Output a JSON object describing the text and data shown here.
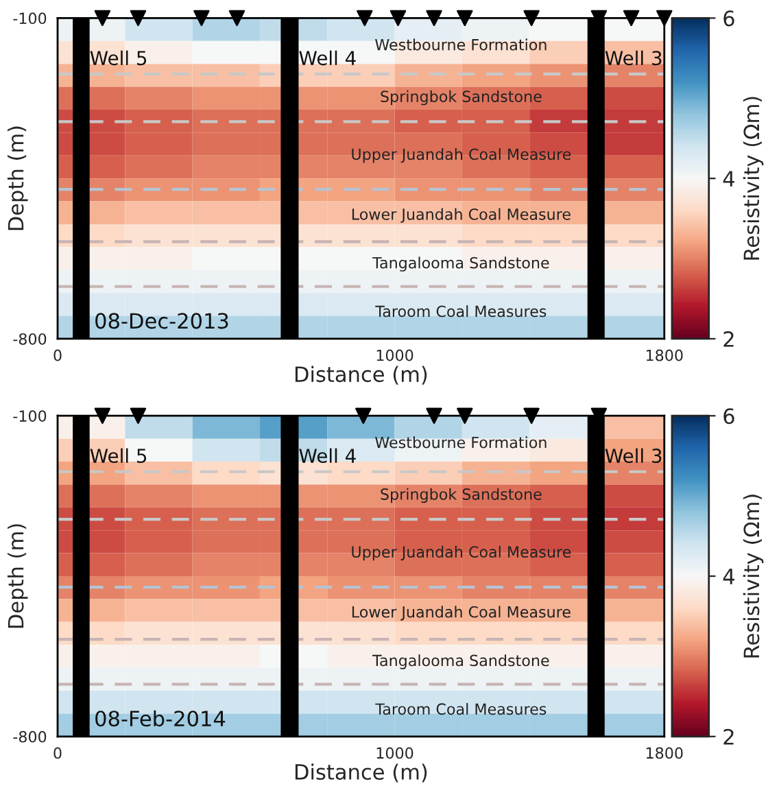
{
  "chart_data": [
    {
      "type": "heatmap",
      "xlabel": "Distance (m)",
      "ylabel": "Depth (m)",
      "clabel": "Resistivity (Ωm)",
      "xlim": [
        0,
        1800
      ],
      "ylim": [
        -800,
        -100
      ],
      "xticks": [
        0,
        1000,
        1800
      ],
      "yticks": [
        -100,
        -800
      ],
      "clim": [
        2,
        6
      ],
      "cticks": [
        2,
        4,
        6
      ],
      "grid": false,
      "cells": [
        [
          4.1,
          4.4,
          4.6,
          4.5,
          4.4,
          4.2,
          4.1,
          4.0,
          4.0
        ],
        [
          3.7,
          3.9,
          4.0,
          4.0,
          4.0,
          3.8,
          3.7,
          3.5,
          3.4
        ],
        [
          3.3,
          3.4,
          3.4,
          3.5,
          3.5,
          3.3,
          3.2,
          3.1,
          3.0
        ],
        [
          2.9,
          3.0,
          3.1,
          3.1,
          3.1,
          3.0,
          2.9,
          2.8,
          2.7
        ],
        [
          2.7,
          2.8,
          2.9,
          2.9,
          2.9,
          2.8,
          2.8,
          2.6,
          2.6
        ],
        [
          2.7,
          2.8,
          2.9,
          2.9,
          2.9,
          2.9,
          2.8,
          2.7,
          2.6
        ],
        [
          2.8,
          2.9,
          3.0,
          3.0,
          3.0,
          3.0,
          2.9,
          2.8,
          2.8
        ],
        [
          3.0,
          3.1,
          3.1,
          3.2,
          3.2,
          3.1,
          3.1,
          3.0,
          3.0
        ],
        [
          3.3,
          3.4,
          3.4,
          3.4,
          3.4,
          3.4,
          3.3,
          3.3,
          3.3
        ],
        [
          3.6,
          3.7,
          3.7,
          3.7,
          3.7,
          3.7,
          3.6,
          3.6,
          3.6
        ],
        [
          3.9,
          3.9,
          4.0,
          4.0,
          4.0,
          4.0,
          3.9,
          3.9,
          3.9
        ],
        [
          4.1,
          4.1,
          4.1,
          4.1,
          4.1,
          4.1,
          4.1,
          4.1,
          4.1
        ],
        [
          4.3,
          4.3,
          4.3,
          4.3,
          4.3,
          4.3,
          4.3,
          4.3,
          4.3
        ],
        [
          4.6,
          4.6,
          4.6,
          4.6,
          4.6,
          4.6,
          4.6,
          4.6,
          4.6
        ]
      ],
      "bands": [
        {
          "axis": "x",
          "from": 45,
          "to": 95,
          "label": "Well 5",
          "color": "#000000"
        },
        {
          "axis": "x",
          "from": 662,
          "to": 715,
          "label": "Well 4",
          "color": "#000000"
        },
        {
          "axis": "x",
          "from": 1572,
          "to": 1623,
          "label": "Well 3",
          "color": "#000000"
        }
      ],
      "ref_lines": [
        {
          "axis": "y",
          "value": -222,
          "color": "#c8c8c8",
          "line_style": "dashed"
        },
        {
          "axis": "y",
          "value": -326,
          "color": "#c8c8c8",
          "line_style": "dashed"
        },
        {
          "axis": "y",
          "value": -474,
          "color": "#b4c4d4",
          "line_style": "dashed"
        },
        {
          "axis": "y",
          "value": -588,
          "color": "#c8b4b4",
          "line_style": "dashed"
        },
        {
          "axis": "y",
          "value": -686,
          "color": "#c8b4b4",
          "line_style": "dashed"
        }
      ],
      "series": [
        {
          "type": "scatter",
          "marker": "triangle",
          "color": "#000000",
          "x": [
            133,
            239,
            427,
            532,
            911,
            1010,
            1117,
            1208,
            1406,
            1606,
            1702,
            1800
          ],
          "values": [
            -100,
            -100,
            -100,
            -100,
            -100,
            -100,
            -100,
            -100,
            -100,
            -100,
            -100,
            -100
          ]
        }
      ],
      "annotations": [
        "Westbourne Formation",
        "Springbok Sandstone",
        "Upper Juandah Coal Measure",
        "Lower Juandah Coal Measure",
        "Tangalooma Sandstone",
        "Taroom Coal Measures",
        "08-Dec-2013"
      ]
    },
    {
      "type": "heatmap",
      "xlabel": "Distance (m)",
      "ylabel": "Depth (m)",
      "clabel": "Resistivity (Ωm)",
      "xlim": [
        0,
        1800
      ],
      "ylim": [
        -800,
        -100
      ],
      "xticks": [
        0,
        1000,
        1800
      ],
      "yticks": [
        -100,
        -800
      ],
      "clim": [
        2,
        6
      ],
      "cticks": [
        2,
        4,
        6
      ],
      "grid": false,
      "cells": [
        [
          3.9,
          4.5,
          4.9,
          5.1,
          4.9,
          4.6,
          4.4,
          4.2,
          3.4
        ],
        [
          3.5,
          4.0,
          4.4,
          4.5,
          4.3,
          4.1,
          3.9,
          3.8,
          3.2
        ],
        [
          3.2,
          3.4,
          3.6,
          3.7,
          3.6,
          3.5,
          3.3,
          3.2,
          3.0
        ],
        [
          2.9,
          3.0,
          3.1,
          3.1,
          3.1,
          3.0,
          2.9,
          2.8,
          2.7
        ],
        [
          2.7,
          2.8,
          2.9,
          2.9,
          2.9,
          2.8,
          2.8,
          2.7,
          2.6
        ],
        [
          2.7,
          2.8,
          2.9,
          2.9,
          2.9,
          2.8,
          2.8,
          2.7,
          2.7
        ],
        [
          2.8,
          2.9,
          3.0,
          3.0,
          3.0,
          2.9,
          2.9,
          2.8,
          2.8
        ],
        [
          3.0,
          3.1,
          3.1,
          3.2,
          3.1,
          3.1,
          3.0,
          3.0,
          3.0
        ],
        [
          3.3,
          3.4,
          3.4,
          3.4,
          3.4,
          3.3,
          3.3,
          3.3,
          3.3
        ],
        [
          3.6,
          3.7,
          3.7,
          3.7,
          3.7,
          3.6,
          3.6,
          3.6,
          3.6
        ],
        [
          3.9,
          3.9,
          3.9,
          4.0,
          3.9,
          3.9,
          3.9,
          3.9,
          3.9
        ],
        [
          4.1,
          4.1,
          4.1,
          4.1,
          4.1,
          4.1,
          4.1,
          4.1,
          4.1
        ],
        [
          4.4,
          4.4,
          4.4,
          4.4,
          4.4,
          4.4,
          4.4,
          4.4,
          4.4
        ],
        [
          4.7,
          4.7,
          4.7,
          4.7,
          4.7,
          4.7,
          4.7,
          4.7,
          4.7
        ]
      ],
      "bands": [
        {
          "axis": "x",
          "from": 45,
          "to": 95,
          "label": "Well 5",
          "color": "#000000"
        },
        {
          "axis": "x",
          "from": 662,
          "to": 715,
          "label": "Well 4",
          "color": "#000000"
        },
        {
          "axis": "x",
          "from": 1572,
          "to": 1623,
          "label": "Well 3",
          "color": "#000000"
        }
      ],
      "ref_lines": [
        {
          "axis": "y",
          "value": -222,
          "color": "#c8c8c8",
          "line_style": "dashed"
        },
        {
          "axis": "y",
          "value": -326,
          "color": "#c8c8c8",
          "line_style": "dashed"
        },
        {
          "axis": "y",
          "value": -474,
          "color": "#b4c4d4",
          "line_style": "dashed"
        },
        {
          "axis": "y",
          "value": -588,
          "color": "#c8b4b4",
          "line_style": "dashed"
        },
        {
          "axis": "y",
          "value": -686,
          "color": "#c8b4b4",
          "line_style": "dashed"
        }
      ],
      "series": [
        {
          "type": "scatter",
          "marker": "triangle",
          "color": "#000000",
          "x": [
            133,
            239,
            907,
            1117,
            1208,
            1406,
            1606
          ],
          "values": [
            -100,
            -100,
            -100,
            -100,
            -100,
            -100,
            -100
          ]
        }
      ],
      "annotations": [
        "Westbourne Formation",
        "Springbok Sandstone",
        "Upper Juandah Coal Measure",
        "Lower Juandah Coal Measure",
        "Tangalooma Sandstone",
        "Taroom Coal Measures",
        "08-Feb-2014"
      ]
    }
  ]
}
